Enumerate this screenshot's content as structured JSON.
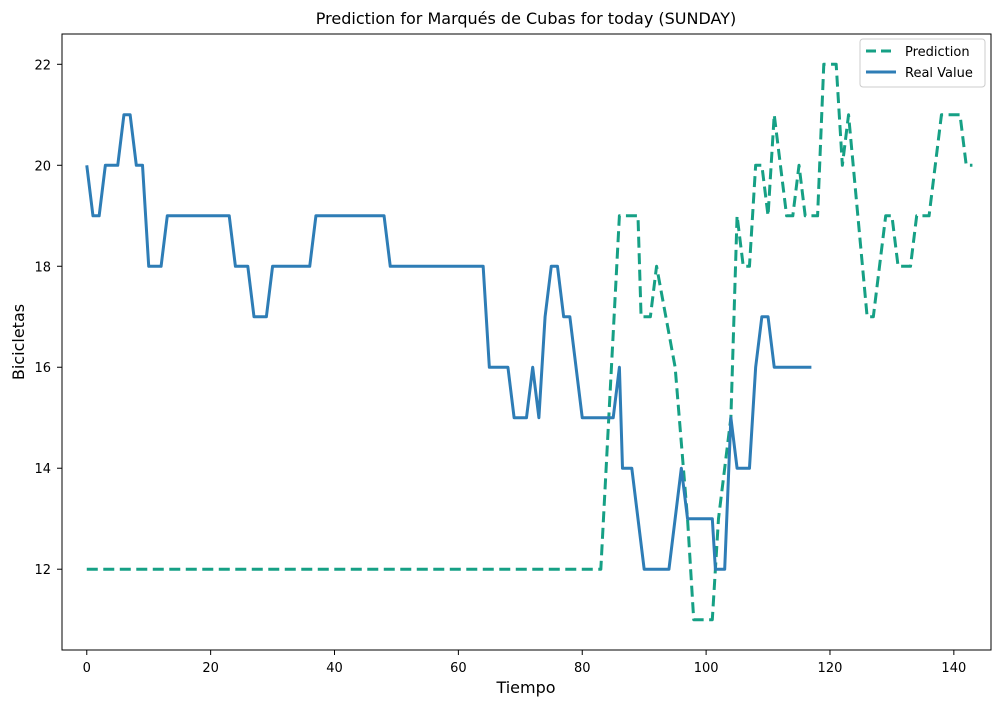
{
  "chart_data": {
    "type": "line",
    "title": "Prediction for Marqués de Cubas for today (SUNDAY)",
    "xlabel": "Tiempo",
    "ylabel": "Bicicletas",
    "xlim": [
      -4,
      146
    ],
    "ylim": [
      10.4,
      22.6
    ],
    "x_ticks": [
      0,
      20,
      40,
      60,
      80,
      100,
      120,
      140
    ],
    "y_ticks": [
      12,
      14,
      16,
      18,
      20,
      22
    ],
    "grid": false,
    "legend_position": "top-right",
    "series": [
      {
        "name": "Prediction",
        "color": "#16a085",
        "style": "dashed",
        "points": [
          [
            0,
            12
          ],
          [
            83,
            12
          ],
          [
            86,
            19
          ],
          [
            89,
            19
          ],
          [
            89.5,
            17
          ],
          [
            91,
            17
          ],
          [
            92,
            18
          ],
          [
            95,
            16
          ],
          [
            97,
            13
          ],
          [
            98,
            11
          ],
          [
            101,
            11
          ],
          [
            102,
            13
          ],
          [
            104,
            15
          ],
          [
            105,
            19
          ],
          [
            106,
            18
          ],
          [
            107,
            18
          ],
          [
            108,
            20
          ],
          [
            109,
            20
          ],
          [
            110,
            19
          ],
          [
            111,
            21
          ],
          [
            113,
            19
          ],
          [
            114,
            19
          ],
          [
            115,
            20
          ],
          [
            116,
            19
          ],
          [
            118,
            19
          ],
          [
            119,
            22
          ],
          [
            121,
            22
          ],
          [
            122,
            20
          ],
          [
            123,
            21
          ],
          [
            126,
            17
          ],
          [
            127,
            17
          ],
          [
            129,
            19
          ],
          [
            130,
            19
          ],
          [
            131,
            18
          ],
          [
            133,
            18
          ],
          [
            134,
            19
          ],
          [
            136,
            19
          ],
          [
            138,
            21
          ],
          [
            141,
            21
          ],
          [
            142,
            20
          ],
          [
            143,
            20
          ]
        ]
      },
      {
        "name": "Real Value",
        "color": "#2e7db6",
        "style": "solid",
        "points": [
          [
            0,
            20
          ],
          [
            1,
            19
          ],
          [
            2,
            19
          ],
          [
            3,
            20
          ],
          [
            5,
            20
          ],
          [
            6,
            21
          ],
          [
            7,
            21
          ],
          [
            8,
            20
          ],
          [
            9,
            20
          ],
          [
            10,
            18
          ],
          [
            12,
            18
          ],
          [
            13,
            19
          ],
          [
            23,
            19
          ],
          [
            24,
            18
          ],
          [
            26,
            18
          ],
          [
            27,
            17
          ],
          [
            29,
            17
          ],
          [
            30,
            18
          ],
          [
            36,
            18
          ],
          [
            37,
            19
          ],
          [
            48,
            19
          ],
          [
            49,
            18
          ],
          [
            64,
            18
          ],
          [
            65,
            16
          ],
          [
            68,
            16
          ],
          [
            69,
            15
          ],
          [
            71,
            15
          ],
          [
            72,
            16
          ],
          [
            73,
            15
          ],
          [
            74,
            17
          ],
          [
            75,
            18
          ],
          [
            76,
            18
          ],
          [
            77,
            17
          ],
          [
            78,
            17
          ],
          [
            80,
            15
          ],
          [
            85,
            15
          ],
          [
            86,
            16
          ],
          [
            86.5,
            14
          ],
          [
            88,
            14
          ],
          [
            90,
            12
          ],
          [
            94,
            12
          ],
          [
            96,
            14
          ],
          [
            97,
            13
          ],
          [
            101,
            13
          ],
          [
            101.5,
            12
          ],
          [
            103,
            12
          ],
          [
            104,
            15
          ],
          [
            105,
            14
          ],
          [
            107,
            14
          ],
          [
            108,
            16
          ],
          [
            109,
            17
          ],
          [
            110,
            17
          ],
          [
            111,
            16
          ],
          [
            117,
            16
          ]
        ]
      }
    ]
  }
}
